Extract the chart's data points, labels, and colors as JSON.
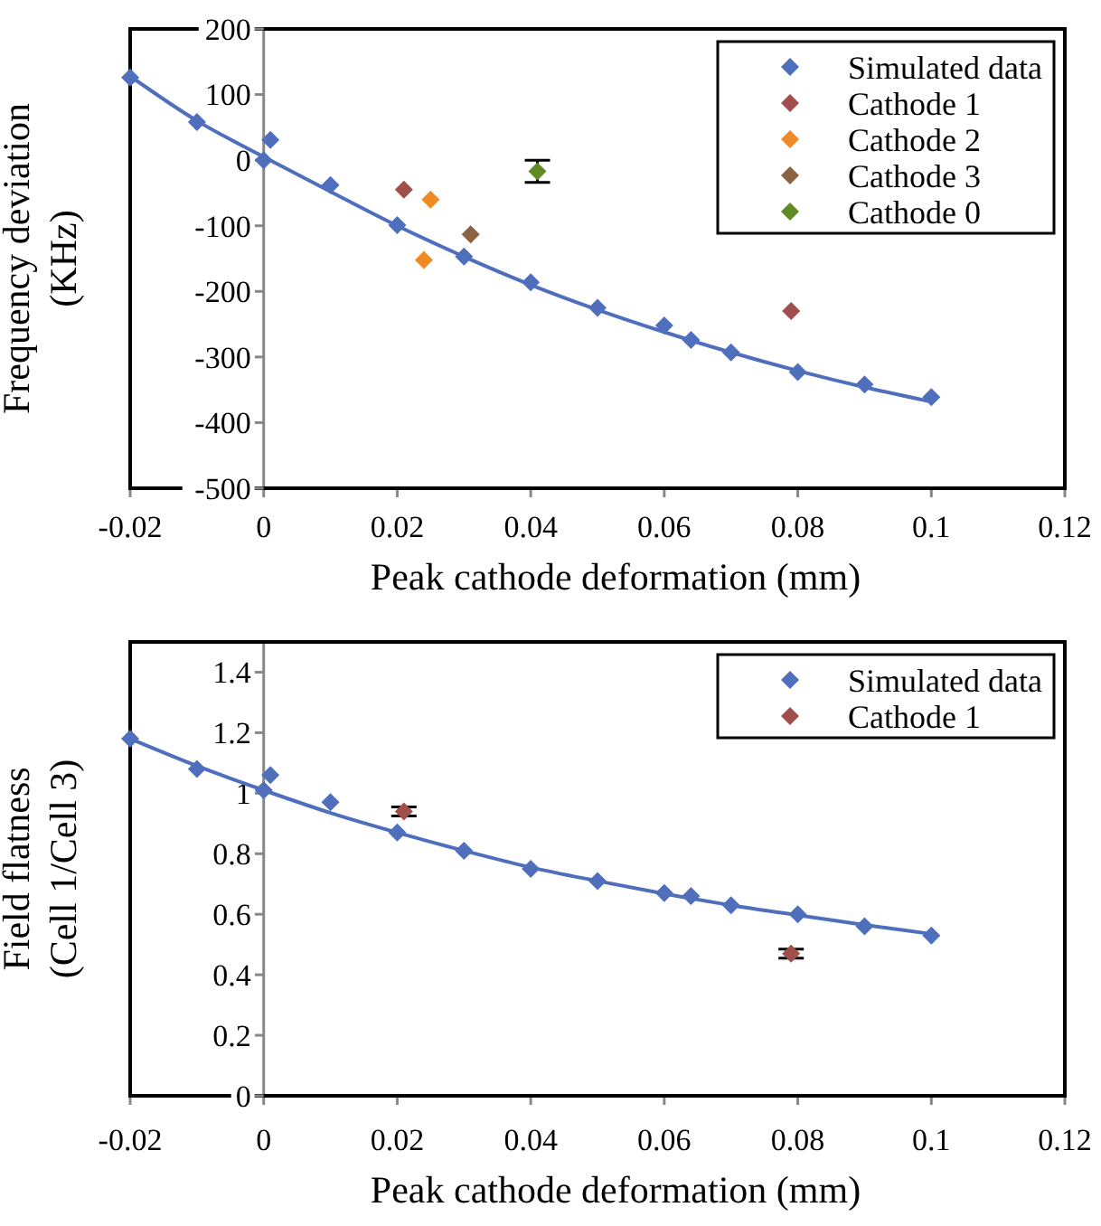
{
  "chart_data": [
    {
      "type": "scatter",
      "xlabel": "Peak cathode deformation (mm)",
      "ylabel": "Frequency deviation\n(KHz)",
      "xlim": [
        -0.02,
        0.12
      ],
      "xticks": [
        -0.02,
        0,
        0.02,
        0.04,
        0.06,
        0.08,
        0.1,
        0.12
      ],
      "ylim": [
        -500,
        200
      ],
      "yticks": [
        -500,
        -400,
        -300,
        -200,
        -100,
        0,
        100,
        200
      ],
      "legend": "top right",
      "grid": false,
      "marker": "diamond",
      "series": [
        {
          "type": "line",
          "color": "#4f6fbd",
          "marker": "none",
          "x": [
            -0.02,
            -0.01,
            0,
            0.01,
            0.02,
            0.03,
            0.04,
            0.05,
            0.06,
            0.07,
            0.08,
            0.09,
            0.1
          ],
          "values": [
            128,
            60,
            5,
            -48,
            -100,
            -147,
            -190,
            -228,
            -262,
            -293,
            -321,
            -346,
            -368
          ]
        },
        {
          "name": "Simulated data",
          "color": "#4f6fbd",
          "x": [
            -0.02,
            -0.01,
            0,
            0.001,
            0.01,
            0.02,
            0.03,
            0.04,
            0.05,
            0.06,
            0.064,
            0.07,
            0.08,
            0.09,
            0.1
          ],
          "values": [
            126,
            58,
            0,
            31,
            -38,
            -99,
            -147,
            -186,
            -225,
            -252,
            -274,
            -293,
            -323,
            -342,
            -361
          ]
        },
        {
          "name": "Cathode 1",
          "color": "#a04f4d",
          "x": [
            0.021,
            0.079
          ],
          "values": [
            -45,
            -230
          ]
        },
        {
          "name": "Cathode 2",
          "color": "#f08a22",
          "x": [
            0.025,
            0.024
          ],
          "values": [
            -60,
            -152
          ]
        },
        {
          "name": "Cathode 3",
          "color": "#8b6342",
          "x": [
            0.031
          ],
          "values": [
            -113
          ]
        },
        {
          "name": "Cathode 0",
          "color": "#5f8b22",
          "x": [
            0.041
          ],
          "values": [
            -17
          ],
          "errors": [
            17
          ]
        }
      ]
    },
    {
      "type": "scatter",
      "xlabel": "Peak cathode deformation (mm)",
      "ylabel": "Field flatness\n(Cell 1/Cell 3)",
      "xlim": [
        -0.02,
        0.12
      ],
      "xticks": [
        -0.02,
        0,
        0.02,
        0.04,
        0.06,
        0.08,
        0.1,
        0.12
      ],
      "ylim": [
        0,
        1.5
      ],
      "yticks": [
        0,
        0.2,
        0.4,
        0.6,
        0.8,
        1,
        1.2,
        1.4
      ],
      "legend": "top right",
      "grid": false,
      "marker": "diamond",
      "series": [
        {
          "type": "line",
          "color": "#4f6fbd",
          "marker": "none",
          "x": [
            -0.02,
            -0.01,
            0,
            0.01,
            0.02,
            0.03,
            0.04,
            0.05,
            0.06,
            0.07,
            0.08,
            0.09,
            0.1
          ],
          "values": [
            1.18,
            1.09,
            1.01,
            0.935,
            0.87,
            0.81,
            0.755,
            0.71,
            0.668,
            0.63,
            0.597,
            0.565,
            0.535
          ]
        },
        {
          "name": "Simulated data",
          "color": "#4f6fbd",
          "x": [
            -0.02,
            -0.01,
            0,
            0.001,
            0.01,
            0.02,
            0.03,
            0.04,
            0.05,
            0.06,
            0.064,
            0.07,
            0.08,
            0.09,
            0.1
          ],
          "values": [
            1.18,
            1.08,
            1.01,
            1.06,
            0.97,
            0.87,
            0.81,
            0.75,
            0.71,
            0.67,
            0.66,
            0.63,
            0.6,
            0.56,
            0.53
          ]
        },
        {
          "name": "Cathode 1",
          "color": "#a04f4d",
          "x": [
            0.021,
            0.079
          ],
          "values": [
            0.94,
            0.47
          ],
          "errors": [
            0.015,
            0.015
          ]
        }
      ]
    }
  ]
}
